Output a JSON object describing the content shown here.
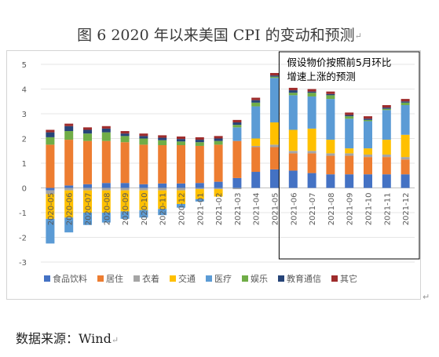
{
  "figure": {
    "title": "图 6   2020 年以来美国 CPI 的变动和预测",
    "source": "数据来源：Wind"
  },
  "chart_data": {
    "type": "bar",
    "stacked": true,
    "title": "",
    "xlabel": "",
    "ylabel": "",
    "ylim": [
      -3,
      5
    ],
    "yticks": [
      -3,
      -2,
      -1,
      0,
      1,
      2,
      3,
      4,
      5
    ],
    "grid": true,
    "legend_position": "bottom",
    "categories": [
      "2020-05",
      "2020-06",
      "2020-07",
      "2020-08",
      "2020-09",
      "2020-10",
      "2020-11",
      "2020-12",
      "2021-01",
      "2021-02",
      "2021-03",
      "2021-04",
      "2021-05",
      "2021-06",
      "2021-07",
      "2021-08",
      "2021-09",
      "2021-10",
      "2021-11",
      "2021-12"
    ],
    "forecast_note": "假设物价按照前5月环比增速上涨的预测",
    "forecast_categories": [
      "2021-06",
      "2021-07",
      "2021-08",
      "2021-09",
      "2021-10",
      "2021-11",
      "2021-12"
    ],
    "series": [
      {
        "name": "食品饮料",
        "color": "#4472c4",
        "values": [
          -0.1,
          0.1,
          0.15,
          0.2,
          0.2,
          0.15,
          0.18,
          0.18,
          0.2,
          0.25,
          0.4,
          0.65,
          0.75,
          0.7,
          0.6,
          0.55,
          0.55,
          0.55,
          0.55,
          0.55
        ]
      },
      {
        "name": "居住",
        "color": "#ed7d31",
        "values": [
          1.75,
          1.85,
          1.75,
          1.7,
          1.65,
          1.6,
          1.55,
          1.55,
          1.5,
          1.5,
          1.5,
          1.0,
          0.9,
          0.7,
          0.8,
          0.75,
          0.75,
          0.7,
          0.7,
          0.6
        ]
      },
      {
        "name": "衣着",
        "color": "#a5a5a5",
        "values": [
          -0.15,
          -0.1,
          -0.1,
          -0.1,
          -0.1,
          -0.1,
          -0.1,
          -0.1,
          -0.05,
          -0.05,
          -0.05,
          0.05,
          0.1,
          0.1,
          0.1,
          0.1,
          0.1,
          0.1,
          0.1,
          0.1
        ]
      },
      {
        "name": "交通",
        "color": "#ffc000",
        "values": [
          -1.0,
          -1.1,
          -0.9,
          -0.9,
          -0.85,
          -0.8,
          -0.75,
          -0.55,
          -0.4,
          -0.3,
          0.0,
          0.3,
          0.9,
          0.85,
          0.9,
          0.55,
          0.2,
          0.25,
          0.6,
          0.9
        ]
      },
      {
        "name": "医疗",
        "color": "#5b9bd5",
        "values": [
          -1.0,
          -0.6,
          -0.5,
          -0.4,
          -0.3,
          -0.3,
          -0.25,
          -0.15,
          -0.1,
          0.0,
          0.55,
          1.3,
          1.8,
          1.4,
          1.3,
          1.65,
          1.2,
          1.1,
          1.2,
          1.2
        ]
      },
      {
        "name": "娱乐",
        "color": "#70ad47",
        "values": [
          0.3,
          0.35,
          0.3,
          0.35,
          0.25,
          0.25,
          0.2,
          0.15,
          0.15,
          0.15,
          0.1,
          0.15,
          0.05,
          0.1,
          0.15,
          0.15,
          0.1,
          0.05,
          0.05,
          0.1
        ]
      },
      {
        "name": "教育通信",
        "color": "#264478",
        "values": [
          0.2,
          0.2,
          0.15,
          0.15,
          0.1,
          0.1,
          0.1,
          0.1,
          0.1,
          0.1,
          0.1,
          0.1,
          0.05,
          0.1,
          0.05,
          0.05,
          0.05,
          0.05,
          0.05,
          0.05
        ]
      },
      {
        "name": "其它",
        "color": "#9e2c2c",
        "values": [
          0.1,
          0.1,
          0.1,
          0.1,
          0.1,
          0.1,
          0.1,
          0.1,
          0.1,
          0.1,
          0.1,
          0.1,
          0.1,
          0.1,
          0.1,
          0.1,
          0.1,
          0.1,
          0.1,
          0.1
        ]
      }
    ]
  }
}
